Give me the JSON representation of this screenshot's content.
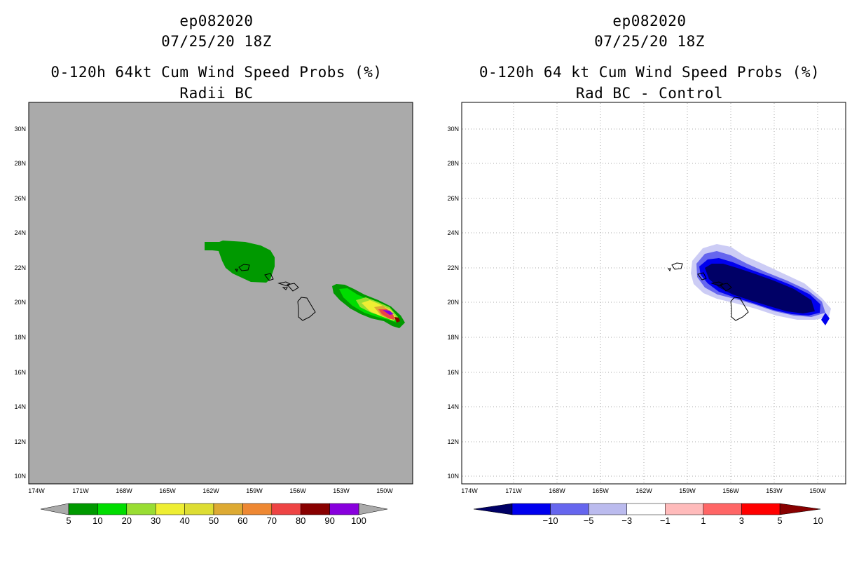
{
  "left": {
    "storm": "ep082020",
    "date": "07/25/20 18Z",
    "title": "0-120h 64kt Cum Wind Speed Probs (%)",
    "subtitle": "Radii BC",
    "colorbar": {
      "labels": [
        "5",
        "10",
        "20",
        "30",
        "40",
        "50",
        "60",
        "70",
        "80",
        "90",
        "100"
      ],
      "colors": [
        "#009900",
        "#00dd00",
        "#99dd33",
        "#eeee33",
        "#dddd33",
        "#ddaa33",
        "#ee8833",
        "#ee4444",
        "#880000",
        "#8800dd"
      ]
    }
  },
  "right": {
    "storm": "ep082020",
    "date": "07/25/20 18Z",
    "title": "0-120h 64 kt Cum Wind Speed Probs (%)",
    "subtitle": "Rad BC - Control",
    "colorbar": {
      "labels": [
        "-10",
        "-5",
        "-3",
        "-1",
        "1",
        "3",
        "5",
        "10"
      ],
      "colors": [
        "#000066",
        "#0000ee",
        "#6666ee",
        "#bbbbee",
        "#ffffff",
        "#ffbbbb",
        "#ff6666",
        "#ff0000",
        "#880000"
      ]
    }
  },
  "axes": {
    "lat_labels": [
      "30N",
      "28N",
      "26N",
      "24N",
      "22N",
      "20N",
      "18N",
      "16N",
      "14N",
      "12N",
      "10N"
    ],
    "lon_labels": [
      "174W",
      "171W",
      "168W",
      "165W",
      "162W",
      "159W",
      "156W",
      "153W",
      "150W"
    ]
  },
  "colors": {
    "land_bg": "#aaaaaa",
    "grid": "#aaaaaa"
  },
  "chart_data": [
    {
      "type": "contour",
      "title": "0-120h 64kt Cum Wind Speed Probs (%)",
      "subtitle": "Radii BC",
      "xlim": [
        -175,
        -148.5
      ],
      "ylim": [
        9.5,
        31.5
      ],
      "levels": [
        5,
        10,
        20,
        30,
        40,
        50,
        60,
        70,
        80,
        90,
        100
      ],
      "regions": [
        {
          "desc": "5-10% area north of Kauai/Oahu",
          "level": 5,
          "lon": [
            -162.5,
            -157.5
          ],
          "lat": [
            21.2,
            23.5
          ]
        },
        {
          "desc": "Main probability swath east of Big Island",
          "level": 5,
          "lon": [
            -153.5,
            -149.5
          ],
          "lat": [
            19.0,
            21.1
          ]
        },
        {
          "desc": "Max probability core",
          "level": 80,
          "lon": -150.2,
          "lat": 19.4
        }
      ]
    },
    {
      "type": "contour",
      "title": "0-120h 64 kt Cum Wind Speed Probs (%)",
      "subtitle": "Rad BC - Control",
      "xlim": [
        -175,
        -148.5
      ],
      "ylim": [
        9.5,
        31.5
      ],
      "levels": [
        -10,
        -5,
        -3,
        -1,
        1,
        3,
        5,
        10
      ],
      "regions": [
        {
          "desc": "Negative difference swath",
          "level": -10,
          "lon": [
            -158.5,
            -150.0
          ],
          "lat": [
            19.3,
            22.0
          ]
        },
        {
          "desc": "Small negative patch",
          "level": -5,
          "lon": -149.6,
          "lat": 18.9
        }
      ]
    }
  ]
}
